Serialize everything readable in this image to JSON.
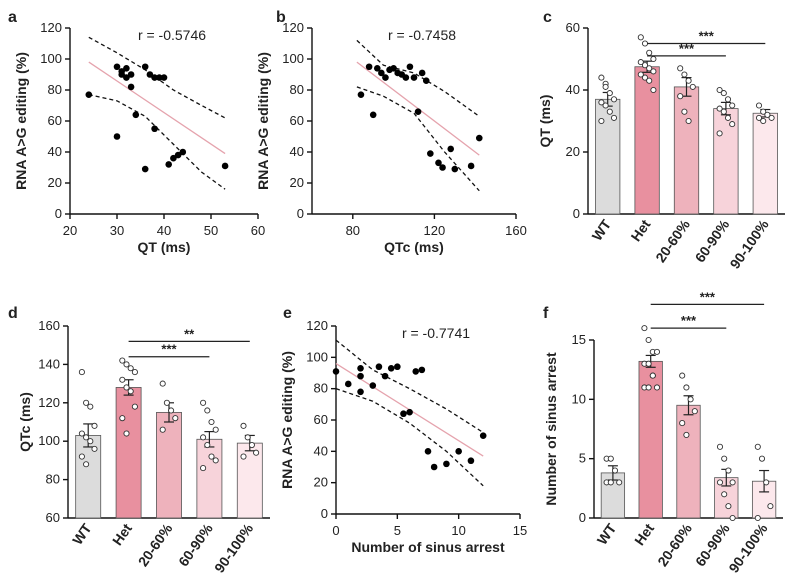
{
  "panels": [
    {
      "id": "a",
      "type": "scatter",
      "label": "a",
      "xlabel": "QT (ms)",
      "ylabel": "RNA A>G editing (%)",
      "xlim": [
        20,
        60
      ],
      "ylim": [
        0,
        120
      ],
      "xticks": [
        20,
        30,
        40,
        50,
        60
      ],
      "yticks": [
        0,
        20,
        40,
        60,
        80,
        100,
        120
      ],
      "r_text": "r = -0.5746",
      "fit": {
        "x": [
          24,
          53
        ],
        "y": [
          98,
          39
        ]
      },
      "ci_upper": {
        "x": [
          24,
          30,
          36,
          42,
          48,
          53
        ],
        "y": [
          114,
          104,
          93,
          80,
          70,
          62
        ]
      },
      "ci_lower": {
        "x": [
          24,
          30,
          36,
          42,
          48,
          53
        ],
        "y": [
          77,
          73,
          63,
          45,
          27,
          16
        ]
      },
      "points": {
        "x": [
          24,
          30,
          30,
          31,
          31,
          32,
          32,
          33,
          33,
          34,
          36,
          36,
          37,
          38,
          38,
          39,
          40,
          41,
          42,
          43,
          44,
          53
        ],
        "y": [
          77,
          95,
          50,
          92,
          90,
          88,
          94,
          82,
          90,
          64,
          95,
          29,
          90,
          88,
          55,
          88,
          88,
          32,
          36,
          38,
          40,
          31
        ]
      }
    },
    {
      "id": "b",
      "type": "scatter",
      "label": "b",
      "xlabel": "QTc (ms)",
      "ylabel": "RNA A>G editing (%)",
      "xlim": [
        60,
        160
      ],
      "ylim": [
        0,
        120
      ],
      "xticks": [
        80,
        120,
        160
      ],
      "yticks": [
        0,
        20,
        40,
        60,
        80,
        100,
        120
      ],
      "r_text": "r = -0.7458",
      "fit": {
        "x": [
          82,
          142
        ],
        "y": [
          98,
          38
        ]
      },
      "ci_upper": {
        "x": [
          82,
          95,
          110,
          125,
          142
        ],
        "y": [
          112,
          96,
          91,
          79,
          63
        ]
      },
      "ci_lower": {
        "x": [
          82,
          95,
          110,
          125,
          142
        ],
        "y": [
          82,
          76,
          65,
          40,
          15
        ]
      },
      "points": {
        "x": [
          84,
          88,
          90,
          92,
          94,
          96,
          98,
          100,
          102,
          104,
          106,
          108,
          110,
          112,
          114,
          116,
          118,
          122,
          124,
          128,
          130,
          138,
          142
        ],
        "y": [
          77,
          95,
          64,
          94,
          91,
          88,
          93,
          94,
          91,
          90,
          88,
          95,
          88,
          66,
          91,
          86,
          39,
          33,
          30,
          42,
          29,
          31,
          49
        ]
      }
    },
    {
      "id": "c",
      "type": "bar",
      "label": "c",
      "ylabel": "QT (ms)",
      "categories": [
        "WT",
        "Het",
        "20-60%",
        "60-90%",
        "90-100%"
      ],
      "values": [
        37,
        47.5,
        41,
        34,
        32.5
      ],
      "errors": [
        2.2,
        1.8,
        3,
        2,
        1.2
      ],
      "colors": [
        "#dcdcdc",
        "#e8909f",
        "#eeb2bc",
        "#f7d3da",
        "#fce8ec"
      ],
      "ylim": [
        0,
        60
      ],
      "yticks": [
        0,
        20,
        40,
        60
      ],
      "dots": [
        [
          44,
          42,
          39,
          37,
          36,
          35,
          33,
          31,
          30,
          41
        ],
        [
          57,
          55,
          52,
          50,
          49,
          48,
          47,
          46,
          45,
          44,
          43,
          40
        ],
        [
          47,
          45,
          43,
          41,
          38,
          33,
          30
        ],
        [
          40,
          39,
          37,
          35,
          34,
          33,
          31,
          29,
          26
        ],
        [
          35,
          33,
          32,
          31,
          31,
          30
        ]
      ],
      "sig": [
        {
          "from": 1,
          "to": 3,
          "label": "***",
          "y": 51
        },
        {
          "from": 1,
          "to": 4,
          "label": "***",
          "y": 55
        }
      ]
    },
    {
      "id": "d",
      "type": "bar",
      "label": "d",
      "ylabel": "QTc (ms)",
      "categories": [
        "WT",
        "Het",
        "20-60%",
        "60-90%",
        "90-100%"
      ],
      "values": [
        103,
        128,
        115,
        101,
        99
      ],
      "errors": [
        6,
        4,
        5,
        4,
        4
      ],
      "colors": [
        "#dcdcdc",
        "#e8909f",
        "#eeb2bc",
        "#f7d3da",
        "#fce8ec"
      ],
      "ylim": [
        60,
        160
      ],
      "yticks": [
        60,
        80,
        100,
        120,
        140,
        160
      ],
      "dots": [
        [
          136,
          120,
          118,
          108,
          104,
          102,
          100,
          96,
          92,
          88
        ],
        [
          142,
          140,
          138,
          136,
          132,
          128,
          126,
          118,
          112,
          104
        ],
        [
          130,
          120,
          116,
          112,
          106
        ],
        [
          120,
          116,
          110,
          106,
          102,
          98,
          92,
          90,
          86
        ],
        [
          108,
          102,
          98,
          94,
          92
        ]
      ],
      "sig": [
        {
          "from": 1,
          "to": 3,
          "label": "***",
          "y": 144
        },
        {
          "from": 1,
          "to": 4,
          "label": "**",
          "y": 152
        }
      ]
    },
    {
      "id": "e",
      "type": "scatter",
      "label": "e",
      "xlabel": "Number of sinus arrest",
      "ylabel": "RNA A>G editing (%)",
      "xlim": [
        0,
        15
      ],
      "ylim": [
        0,
        120
      ],
      "xticks": [
        0,
        5,
        10,
        15
      ],
      "yticks": [
        0,
        20,
        40,
        60,
        80,
        100,
        120
      ],
      "r_text": "r = -0.7741",
      "fit": {
        "x": [
          0,
          12
        ],
        "y": [
          96,
          37
        ]
      },
      "ci_upper": {
        "x": [
          0,
          3,
          6,
          9,
          12
        ],
        "y": [
          111,
          92,
          80,
          67,
          52
        ]
      },
      "ci_lower": {
        "x": [
          0,
          3,
          6,
          9,
          12
        ],
        "y": [
          80,
          72,
          58,
          40,
          18
        ]
      },
      "points": {
        "x": [
          0,
          1,
          2,
          2,
          2,
          3,
          3.5,
          4,
          4.5,
          5,
          5.5,
          6,
          6.5,
          7,
          7.5,
          8,
          9,
          10,
          11,
          12
        ],
        "y": [
          91,
          83,
          78,
          93,
          88,
          82,
          94,
          88,
          93,
          94,
          64,
          65,
          91,
          92,
          40,
          30,
          32,
          40,
          34,
          50
        ]
      }
    },
    {
      "id": "f",
      "type": "bar",
      "label": "f",
      "ylabel": "Number of sinus arrest",
      "categories": [
        "WT",
        "Het",
        "20-60%",
        "60-90%",
        "90-100%"
      ],
      "values": [
        3.8,
        13.2,
        9.5,
        3.4,
        3.1
      ],
      "errors": [
        0.6,
        0.5,
        0.8,
        0.7,
        0.9
      ],
      "colors": [
        "#dcdcdc",
        "#e8909f",
        "#eeb2bc",
        "#f7d3da",
        "#fce8ec"
      ],
      "ylim": [
        0,
        15
      ],
      "yticks": [
        0,
        5,
        10,
        15
      ],
      "dots": [
        [
          5,
          5,
          4,
          3,
          3,
          3
        ],
        [
          16,
          15,
          14,
          14,
          13,
          13,
          12,
          11,
          11,
          11,
          12
        ],
        [
          12,
          11,
          10,
          9,
          8,
          7
        ],
        [
          6,
          5,
          4,
          3,
          3,
          2,
          1,
          0
        ],
        [
          6,
          5,
          3,
          1,
          0
        ]
      ],
      "sig": [
        {
          "from": 1,
          "to": 3,
          "label": "***",
          "y": 16
        },
        {
          "from": 1,
          "to": 4,
          "label": "***",
          "y": 18
        }
      ]
    }
  ],
  "chart_data": [
    {
      "type": "scatter",
      "label": "a",
      "r": -0.5746,
      "xlabel": "QT (ms)",
      "ylabel": "RNA A>G editing (%)",
      "xlim": [
        20,
        60
      ],
      "ylim": [
        0,
        120
      ]
    },
    {
      "type": "scatter",
      "label": "b",
      "r": -0.7458,
      "xlabel": "QTc (ms)",
      "ylabel": "RNA A>G editing (%)",
      "xlim": [
        60,
        160
      ],
      "ylim": [
        0,
        120
      ]
    },
    {
      "type": "bar",
      "label": "c",
      "ylabel": "QT (ms)",
      "categories": [
        "WT",
        "Het",
        "20-60%",
        "60-90%",
        "90-100%"
      ],
      "values": [
        37,
        47.5,
        41,
        34,
        32.5
      ],
      "ylim": [
        0,
        60
      ]
    },
    {
      "type": "bar",
      "label": "d",
      "ylabel": "QTc (ms)",
      "categories": [
        "WT",
        "Het",
        "20-60%",
        "60-90%",
        "90-100%"
      ],
      "values": [
        103,
        128,
        115,
        101,
        99
      ],
      "ylim": [
        60,
        160
      ]
    },
    {
      "type": "scatter",
      "label": "e",
      "r": -0.7741,
      "xlabel": "Number of sinus arrest",
      "ylabel": "RNA A>G editing (%)",
      "xlim": [
        0,
        15
      ],
      "ylim": [
        0,
        120
      ]
    },
    {
      "type": "bar",
      "label": "f",
      "ylabel": "Number of sinus arrest",
      "categories": [
        "WT",
        "Het",
        "20-60%",
        "60-90%",
        "90-100%"
      ],
      "values": [
        3.8,
        13.2,
        9.5,
        3.4,
        3.1
      ],
      "ylim": [
        0,
        15
      ]
    }
  ],
  "colors": {
    "axis": "#111111",
    "fit_line": "#e5a3ad",
    "ci_line": "#111111",
    "point": "#000000"
  }
}
